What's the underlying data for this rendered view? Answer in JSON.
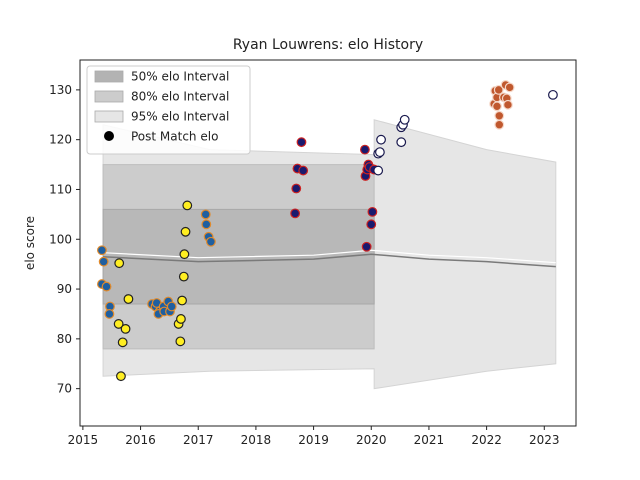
{
  "chart_data": {
    "type": "scatter",
    "title": "Ryan Louwrens: elo History",
    "xlabel": "",
    "ylabel": "elo score",
    "xlim": [
      2014.95,
      2023.55
    ],
    "ylim": [
      62.5,
      136.0
    ],
    "xticks": [
      2015,
      2016,
      2017,
      2018,
      2019,
      2020,
      2021,
      2022,
      2023
    ],
    "xtick_labels": [
      "2015",
      "2016",
      "2017",
      "2018",
      "2019",
      "2020",
      "2021",
      "2022",
      "2023"
    ],
    "yticks": [
      70,
      80,
      90,
      100,
      110,
      120,
      130
    ],
    "ytick_labels": [
      "70",
      "80",
      "90",
      "100",
      "110",
      "120",
      "130"
    ],
    "grid": false,
    "legend": {
      "placement": "top-left",
      "entries": [
        {
          "label": "50% elo Interval",
          "color": "#b3b3b3"
        },
        {
          "label": "80% elo Interval",
          "color": "#cccccc"
        },
        {
          "label": "95% elo Interval",
          "color": "#e6e6e6"
        },
        {
          "label": "Post Match elo",
          "color": "#000000"
        }
      ]
    },
    "bands": {
      "interval_95": {
        "x": [
          2015.35,
          2015.35,
          2017.2,
          2020.05,
          2020.05,
          2022.0,
          2023.2
        ],
        "upper": [
          123.0,
          123.0,
          118.0,
          117.0,
          124.0,
          118.0,
          115.5
        ],
        "lower": [
          72.5,
          72.5,
          73.5,
          74.0,
          70.0,
          73.5,
          75.0
        ]
      },
      "interval_80": {
        "x": [
          2015.35,
          2020.05
        ],
        "upper": [
          115.0,
          115.0
        ],
        "lower": [
          78.0,
          78.0
        ]
      },
      "interval_50": {
        "x": [
          2015.35,
          2020.05
        ],
        "upper": [
          106.0,
          106.0
        ],
        "lower": [
          87.0,
          87.0
        ]
      }
    },
    "mean_line": {
      "x": [
        2015.35,
        2017.0,
        2019.0,
        2020.0,
        2021.0,
        2022.0,
        2023.2
      ],
      "y": [
        96.5,
        95.5,
        96.0,
        97.0,
        96.0,
        95.5,
        94.5
      ]
    },
    "series": [
      {
        "fill": "#1f5fa0",
        "edge": "#e08a2c",
        "points": [
          {
            "x": 2015.33,
            "y": 97.8
          },
          {
            "x": 2015.36,
            "y": 95.5
          },
          {
            "x": 2015.33,
            "y": 91.0
          },
          {
            "x": 2015.41,
            "y": 90.5
          },
          {
            "x": 2015.47,
            "y": 86.5
          },
          {
            "x": 2015.46,
            "y": 85.0
          },
          {
            "x": 2016.2,
            "y": 87.0
          },
          {
            "x": 2016.26,
            "y": 86.5
          },
          {
            "x": 2016.28,
            "y": 87.2
          },
          {
            "x": 2016.33,
            "y": 85.5
          },
          {
            "x": 2016.31,
            "y": 85.0
          },
          {
            "x": 2016.4,
            "y": 86.5
          },
          {
            "x": 2016.41,
            "y": 85.5
          },
          {
            "x": 2016.48,
            "y": 87.5
          },
          {
            "x": 2016.51,
            "y": 85.5
          },
          {
            "x": 2016.54,
            "y": 86.5
          },
          {
            "x": 2017.13,
            "y": 105.0
          },
          {
            "x": 2017.14,
            "y": 103.0
          },
          {
            "x": 2017.18,
            "y": 100.5
          },
          {
            "x": 2017.22,
            "y": 99.5
          }
        ]
      },
      {
        "fill": "#ffee22",
        "edge": "#222222",
        "points": [
          {
            "x": 2015.63,
            "y": 95.2
          },
          {
            "x": 2015.62,
            "y": 83.0
          },
          {
            "x": 2015.66,
            "y": 72.5
          },
          {
            "x": 2015.69,
            "y": 79.3
          },
          {
            "x": 2015.74,
            "y": 82.0
          },
          {
            "x": 2015.79,
            "y": 88.0
          },
          {
            "x": 2016.66,
            "y": 83.0
          },
          {
            "x": 2016.69,
            "y": 79.5
          },
          {
            "x": 2016.7,
            "y": 84.0
          },
          {
            "x": 2016.72,
            "y": 87.7
          },
          {
            "x": 2016.75,
            "y": 92.5
          },
          {
            "x": 2016.76,
            "y": 97.0
          },
          {
            "x": 2016.78,
            "y": 101.5
          },
          {
            "x": 2016.81,
            "y": 106.8
          }
        ]
      },
      {
        "fill": "#1a1a6e",
        "edge": "#cc2222",
        "points": [
          {
            "x": 2018.68,
            "y": 105.2
          },
          {
            "x": 2018.7,
            "y": 110.2
          },
          {
            "x": 2018.72,
            "y": 114.2
          },
          {
            "x": 2018.79,
            "y": 119.5
          },
          {
            "x": 2018.82,
            "y": 113.8
          },
          {
            "x": 2019.89,
            "y": 118.0
          },
          {
            "x": 2019.9,
            "y": 112.7
          },
          {
            "x": 2019.92,
            "y": 98.5
          },
          {
            "x": 2019.93,
            "y": 114.0
          },
          {
            "x": 2019.95,
            "y": 115.0
          },
          {
            "x": 2019.97,
            "y": 114.5
          },
          {
            "x": 2020.0,
            "y": 103.0
          },
          {
            "x": 2020.02,
            "y": 105.5
          },
          {
            "x": 2020.05,
            "y": 114.0
          }
        ]
      },
      {
        "fill": "#ffffff",
        "edge": "#1a1a4e",
        "points": [
          {
            "x": 2020.12,
            "y": 113.8
          },
          {
            "x": 2020.12,
            "y": 117.2
          },
          {
            "x": 2020.15,
            "y": 117.5
          },
          {
            "x": 2020.17,
            "y": 120.0
          },
          {
            "x": 2020.52,
            "y": 119.5
          },
          {
            "x": 2020.52,
            "y": 122.5
          },
          {
            "x": 2020.55,
            "y": 123.0
          },
          {
            "x": 2020.58,
            "y": 124.0
          },
          {
            "x": 2023.15,
            "y": 129.0
          }
        ]
      },
      {
        "fill": "#c0582e",
        "edge": "#f5d7c8",
        "points": [
          {
            "x": 2022.13,
            "y": 127.2
          },
          {
            "x": 2022.15,
            "y": 129.8
          },
          {
            "x": 2022.18,
            "y": 128.5
          },
          {
            "x": 2022.18,
            "y": 126.7
          },
          {
            "x": 2022.21,
            "y": 130.0
          },
          {
            "x": 2022.22,
            "y": 124.8
          },
          {
            "x": 2022.22,
            "y": 123.0
          },
          {
            "x": 2022.3,
            "y": 128.5
          },
          {
            "x": 2022.33,
            "y": 131.0
          },
          {
            "x": 2022.35,
            "y": 128.3
          },
          {
            "x": 2022.37,
            "y": 127.0
          },
          {
            "x": 2022.4,
            "y": 130.5
          }
        ]
      }
    ]
  }
}
